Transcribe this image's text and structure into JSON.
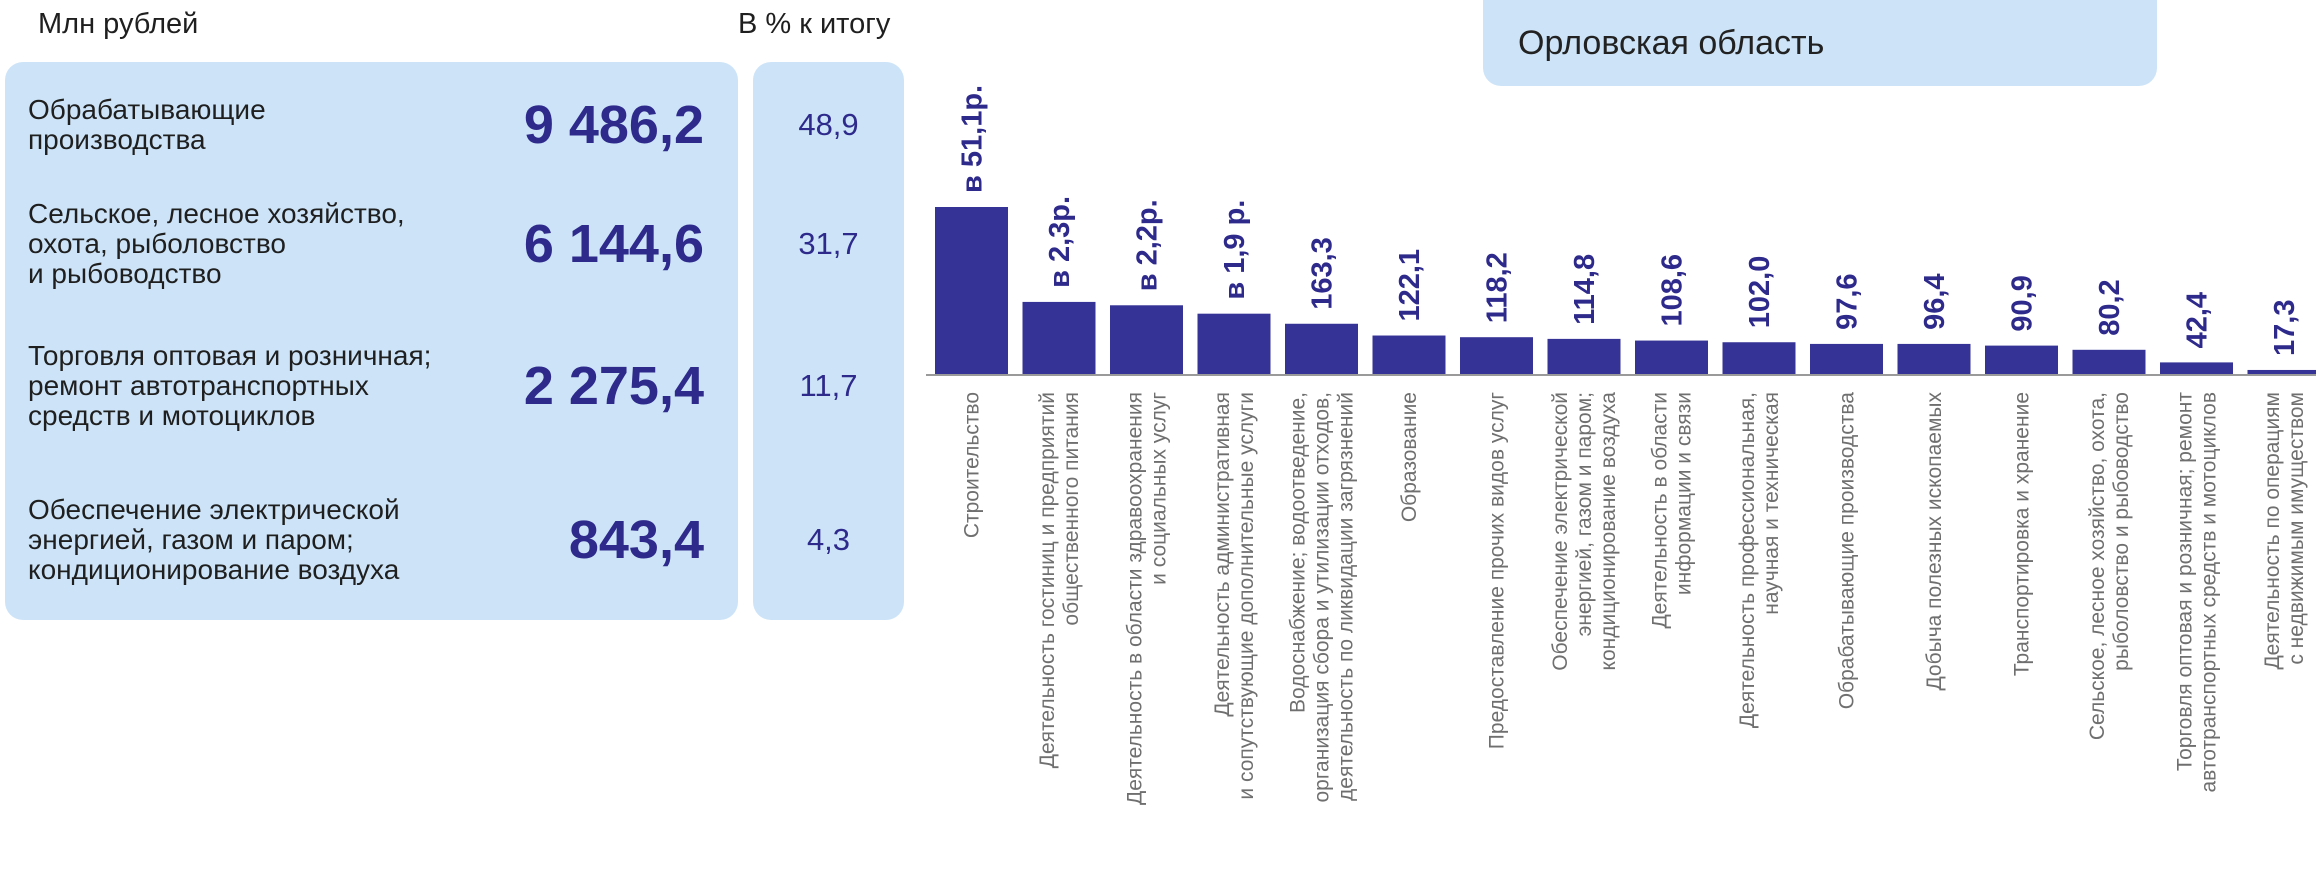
{
  "header": {
    "left_title": "Млн рублей",
    "right_title": "В % к итогу"
  },
  "region": {
    "name": "Орловская область"
  },
  "table": {
    "rows": [
      {
        "label": "Обрабатывающие\nпроизводства",
        "value": "9 486,2",
        "pct": "48,9"
      },
      {
        "label": "Сельское, лесное хозяйство,\nохота, рыболовство\nи рыбоводство",
        "value": "6 144,6",
        "pct": "31,7"
      },
      {
        "label": "Торговля оптовая  и розничная;\nремонт  автотранспортных\nсредств и мотоциклов",
        "value": "2 275,4",
        "pct": "11,7"
      },
      {
        "label": "Обеспечение электрической\nэнергией, газом и паром;\nкондиционирование воздуха",
        "value": "843,4",
        "pct": "4,3"
      }
    ]
  },
  "colors": {
    "bar": "#363396",
    "panel": "#cde4f8",
    "value_text": "#2e2a8c"
  },
  "chart_data": {
    "type": "bar",
    "categories": [
      [
        "Строительство"
      ],
      [
        "Деятельность гостиниц и предприятий",
        "общественного питания"
      ],
      [
        "Деятельность в области здравоохранения",
        "и социальных услуг"
      ],
      [
        "Деятельность административная",
        "и сопутствующие дополнительные услуги"
      ],
      [
        "Водоснабжение; водоотведение,",
        "организация сбора и утилизации отходов,",
        "деятельность по ликвидации загрязнений"
      ],
      [
        "Образование"
      ],
      [
        "Предоставление прочих видов услуг"
      ],
      [
        "Обеспечение электрической",
        "энергией, газом и паром;",
        "кондиционирование воздуха"
      ],
      [
        "Деятельность в области",
        "информации и связи"
      ],
      [
        "Деятельность профессиональная,",
        "научная и техническая"
      ],
      [
        "Обрабатывающие производства"
      ],
      [
        "Добыча полезных ископаемых"
      ],
      [
        "Транспортировка и хранение"
      ],
      [
        "Сельское, лесное хозяйство, охота,",
        "рыболовство и рыбоводство"
      ],
      [
        "Торговля оптовая и розничная; ремонт",
        "автотранспортных средств и мотоциклов"
      ],
      [
        "Деятельность по операциям",
        "с недвижимым имуществом"
      ]
    ],
    "labels": [
      "в 51,1р.",
      "в 2,3р.",
      "в 2,2р.",
      "в 1,9 р.",
      "163,3",
      "122,1",
      "118,2",
      "114,8",
      "108,6",
      "102,0",
      "97,6",
      "96,4",
      "90,9",
      "80,2",
      "42,4",
      "17,3"
    ],
    "bar_heights_relative": [
      100,
      43.5,
      41.5,
      36.5,
      30.5,
      23.5,
      22.5,
      21.5,
      20.5,
      19.5,
      18.5,
      18.5,
      17.5,
      15,
      7.5,
      3
    ]
  }
}
